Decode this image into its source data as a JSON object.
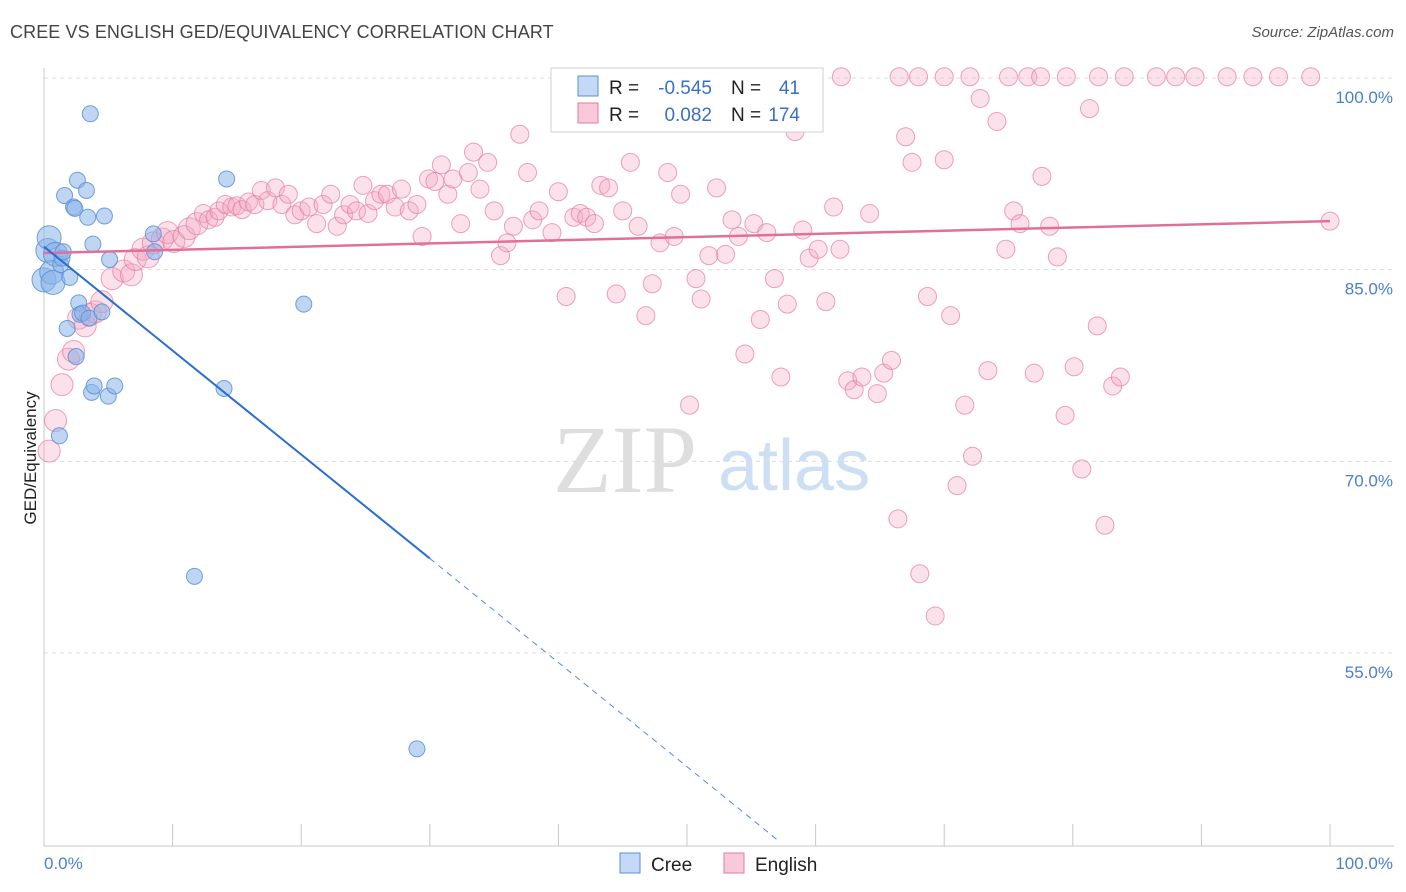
{
  "header": {
    "title": "CREE VS ENGLISH GED/EQUIVALENCY CORRELATION CHART",
    "source": "Source: ZipAtlas.com"
  },
  "watermark": {
    "zip": "ZIP",
    "atlas": "atlas"
  },
  "chart_data": {
    "type": "scatter",
    "ylabel": "GED/Equivalency",
    "xlabel": "",
    "xlim": [
      0,
      100
    ],
    "ylim": [
      40,
      102
    ],
    "x_tick_labels": [
      "0.0%",
      "100.0%"
    ],
    "y_ticks": [
      {
        "value": 100,
        "label": "100.0%"
      },
      {
        "value": 85,
        "label": "85.0%"
      },
      {
        "value": 70,
        "label": "70.0%"
      },
      {
        "value": 55,
        "label": "55.0%"
      }
    ],
    "grid": true,
    "legend": {
      "position": "top-center",
      "entries": [
        {
          "r_label": "R =",
          "r": "-0.545",
          "n_label": "N =",
          "n": "41"
        },
        {
          "r_label": "R =",
          "r": "0.082",
          "n_label": "N =",
          "n": "174"
        }
      ]
    },
    "series": [
      {
        "name": "Cree",
        "color": "#8ab4ea",
        "stroke": "#5a8fd6",
        "trend": {
          "x0": 0,
          "y0": 86.8,
          "x1": 30,
          "y1": 62.4,
          "dash_to_x": 57,
          "dash_to_y": 40.4,
          "color": "#2a6dd2"
        },
        "points": [
          [
            0,
            84.2
          ],
          [
            0.3,
            86.5
          ],
          [
            0.4,
            87.5
          ],
          [
            0.6,
            84.8
          ],
          [
            0.7,
            84.0
          ],
          [
            0.9,
            86.2
          ],
          [
            1.2,
            72.0
          ],
          [
            1.3,
            85.4
          ],
          [
            1.4,
            85.9
          ],
          [
            1.5,
            86.4
          ],
          [
            1.6,
            90.8
          ],
          [
            1.8,
            80.4
          ],
          [
            2.0,
            84.4
          ],
          [
            2.3,
            89.9
          ],
          [
            2.4,
            89.8
          ],
          [
            2.5,
            78.2
          ],
          [
            2.6,
            92.0
          ],
          [
            2.7,
            82.4
          ],
          [
            2.8,
            81.5
          ],
          [
            3.0,
            81.6
          ],
          [
            3.3,
            91.2
          ],
          [
            3.4,
            89.1
          ],
          [
            3.5,
            81.2
          ],
          [
            3.6,
            97.2
          ],
          [
            3.7,
            75.4
          ],
          [
            3.8,
            87.0
          ],
          [
            3.9,
            75.9
          ],
          [
            4.5,
            81.7
          ],
          [
            4.7,
            89.2
          ],
          [
            5.0,
            75.1
          ],
          [
            5.1,
            85.8
          ],
          [
            5.5,
            75.9
          ],
          [
            8.5,
            87.8
          ],
          [
            8.6,
            86.4
          ],
          [
            11.7,
            61.0
          ],
          [
            14.0,
            75.7
          ],
          [
            14.2,
            92.1
          ],
          [
            20.2,
            82.3
          ],
          [
            29.0,
            47.5
          ]
        ]
      },
      {
        "name": "English",
        "color": "#f4aac2",
        "stroke": "#e57aa0",
        "trend": {
          "x0": 0,
          "y0": 86.3,
          "x1": 100,
          "y1": 88.8,
          "color": "#e0709a"
        },
        "points": [
          [
            0.4,
            70.8
          ],
          [
            0.9,
            73.2
          ],
          [
            1.4,
            76.0
          ],
          [
            1.9,
            78.0
          ],
          [
            2.3,
            78.6
          ],
          [
            2.7,
            81.2
          ],
          [
            3.2,
            80.6
          ],
          [
            3.6,
            81.5
          ],
          [
            4.0,
            81.7
          ],
          [
            4.5,
            82.5
          ],
          [
            5.3,
            84.3
          ],
          [
            6.2,
            84.9
          ],
          [
            6.8,
            84.6
          ],
          [
            7.1,
            85.8
          ],
          [
            7.7,
            86.6
          ],
          [
            8.1,
            86.0
          ],
          [
            8.5,
            87.1
          ],
          [
            9.2,
            87.4
          ],
          [
            9.6,
            87.9
          ],
          [
            10.1,
            87.2
          ],
          [
            10.9,
            87.6
          ],
          [
            11.3,
            88.2
          ],
          [
            11.9,
            88.6
          ],
          [
            12.4,
            89.4
          ],
          [
            12.8,
            88.9
          ],
          [
            13.3,
            89.1
          ],
          [
            13.6,
            89.6
          ],
          [
            14.1,
            90.1
          ],
          [
            14.6,
            89.9
          ],
          [
            15.0,
            90.0
          ],
          [
            15.4,
            89.7
          ],
          [
            15.9,
            90.3
          ],
          [
            16.4,
            90.1
          ],
          [
            16.9,
            91.2
          ],
          [
            17.4,
            90.4
          ],
          [
            18.0,
            91.4
          ],
          [
            18.5,
            90.1
          ],
          [
            19.0,
            90.9
          ],
          [
            19.5,
            89.3
          ],
          [
            20.0,
            89.6
          ],
          [
            20.6,
            89.9
          ],
          [
            21.2,
            88.6
          ],
          [
            21.7,
            90.1
          ],
          [
            22.3,
            90.9
          ],
          [
            22.8,
            88.4
          ],
          [
            23.3,
            89.3
          ],
          [
            23.8,
            90.1
          ],
          [
            24.3,
            89.6
          ],
          [
            24.8,
            91.6
          ],
          [
            25.2,
            89.4
          ],
          [
            25.7,
            90.4
          ],
          [
            26.2,
            90.9
          ],
          [
            26.7,
            90.9
          ],
          [
            27.3,
            89.9
          ],
          [
            27.8,
            91.3
          ],
          [
            28.4,
            89.6
          ],
          [
            29.0,
            90.1
          ],
          [
            29.4,
            87.6
          ],
          [
            29.9,
            92.1
          ],
          [
            30.4,
            91.9
          ],
          [
            30.9,
            93.2
          ],
          [
            31.4,
            90.9
          ],
          [
            31.8,
            92.1
          ],
          [
            32.4,
            88.6
          ],
          [
            33.0,
            92.6
          ],
          [
            33.4,
            94.2
          ],
          [
            33.9,
            91.3
          ],
          [
            34.5,
            93.4
          ],
          [
            35.0,
            89.6
          ],
          [
            35.5,
            86.1
          ],
          [
            36.0,
            87.1
          ],
          [
            36.5,
            88.4
          ],
          [
            37.0,
            95.6
          ],
          [
            37.6,
            92.6
          ],
          [
            38.0,
            88.9
          ],
          [
            38.5,
            89.6
          ],
          [
            39.5,
            87.9
          ],
          [
            40.0,
            91.1
          ],
          [
            40.6,
            82.9
          ],
          [
            41.2,
            89.1
          ],
          [
            41.7,
            89.4
          ],
          [
            42.2,
            89.1
          ],
          [
            42.8,
            88.6
          ],
          [
            43.3,
            91.6
          ],
          [
            43.9,
            91.4
          ],
          [
            44.5,
            83.1
          ],
          [
            45.0,
            89.6
          ],
          [
            45.6,
            93.4
          ],
          [
            46.2,
            88.4
          ],
          [
            46.8,
            81.4
          ],
          [
            47.3,
            83.9
          ],
          [
            47.9,
            87.1
          ],
          [
            48.5,
            92.6
          ],
          [
            49.0,
            87.6
          ],
          [
            49.5,
            90.9
          ],
          [
            50.2,
            74.4
          ],
          [
            50.7,
            84.3
          ],
          [
            51.1,
            82.7
          ],
          [
            51.7,
            86.1
          ],
          [
            52.3,
            91.4
          ],
          [
            53.0,
            86.2
          ],
          [
            53.5,
            88.9
          ],
          [
            54.0,
            87.6
          ],
          [
            54.5,
            78.4
          ],
          [
            55.2,
            88.6
          ],
          [
            55.7,
            81.1
          ],
          [
            56.2,
            87.9
          ],
          [
            56.8,
            84.3
          ],
          [
            57.3,
            76.6
          ],
          [
            57.8,
            82.3
          ],
          [
            58.4,
            95.8
          ],
          [
            59.0,
            88.1
          ],
          [
            59.5,
            85.9
          ],
          [
            60.2,
            86.6
          ],
          [
            60.8,
            82.5
          ],
          [
            61.4,
            89.9
          ],
          [
            61.9,
            86.6
          ],
          [
            62.5,
            76.3
          ],
          [
            63.0,
            75.6
          ],
          [
            63.6,
            76.6
          ],
          [
            64.2,
            89.4
          ],
          [
            64.8,
            75.3
          ],
          [
            65.3,
            76.9
          ],
          [
            65.9,
            77.9
          ],
          [
            66.4,
            65.5
          ],
          [
            67.0,
            95.4
          ],
          [
            67.5,
            93.4
          ],
          [
            68.1,
            61.2
          ],
          [
            68.7,
            82.9
          ],
          [
            69.3,
            57.9
          ],
          [
            70.0,
            93.6
          ],
          [
            70.5,
            81.4
          ],
          [
            71.0,
            68.1
          ],
          [
            71.6,
            74.4
          ],
          [
            72.2,
            70.4
          ],
          [
            72.8,
            98.4
          ],
          [
            73.4,
            77.1
          ],
          [
            74.1,
            96.6
          ],
          [
            74.8,
            86.6
          ],
          [
            75.4,
            89.6
          ],
          [
            75.9,
            88.6
          ],
          [
            76.5,
            100.1
          ],
          [
            77.0,
            76.9
          ],
          [
            77.6,
            92.3
          ],
          [
            78.2,
            88.4
          ],
          [
            78.8,
            86.0
          ],
          [
            79.4,
            73.6
          ],
          [
            80.1,
            77.4
          ],
          [
            80.7,
            69.4
          ],
          [
            81.3,
            97.6
          ],
          [
            81.9,
            80.6
          ],
          [
            82.5,
            65.0
          ],
          [
            83.1,
            75.9
          ],
          [
            83.7,
            76.6
          ],
          [
            62.0,
            100.1
          ],
          [
            66.5,
            100.1
          ],
          [
            68.0,
            100.1
          ],
          [
            70.0,
            100.1
          ],
          [
            72.0,
            100.1
          ],
          [
            75.0,
            100.1
          ],
          [
            77.5,
            100.1
          ],
          [
            79.5,
            100.1
          ],
          [
            82.0,
            100.1
          ],
          [
            84.0,
            100.1
          ],
          [
            86.5,
            100.1
          ],
          [
            88.0,
            100.1
          ],
          [
            89.5,
            100.1
          ],
          [
            92.0,
            100.1
          ],
          [
            94.0,
            100.1
          ],
          [
            96.0,
            100.1
          ],
          [
            98.5,
            100.1
          ],
          [
            100,
            88.8
          ]
        ]
      }
    ]
  },
  "bottom_legend": {
    "items": [
      {
        "label": "Cree"
      },
      {
        "label": "English"
      }
    ]
  }
}
